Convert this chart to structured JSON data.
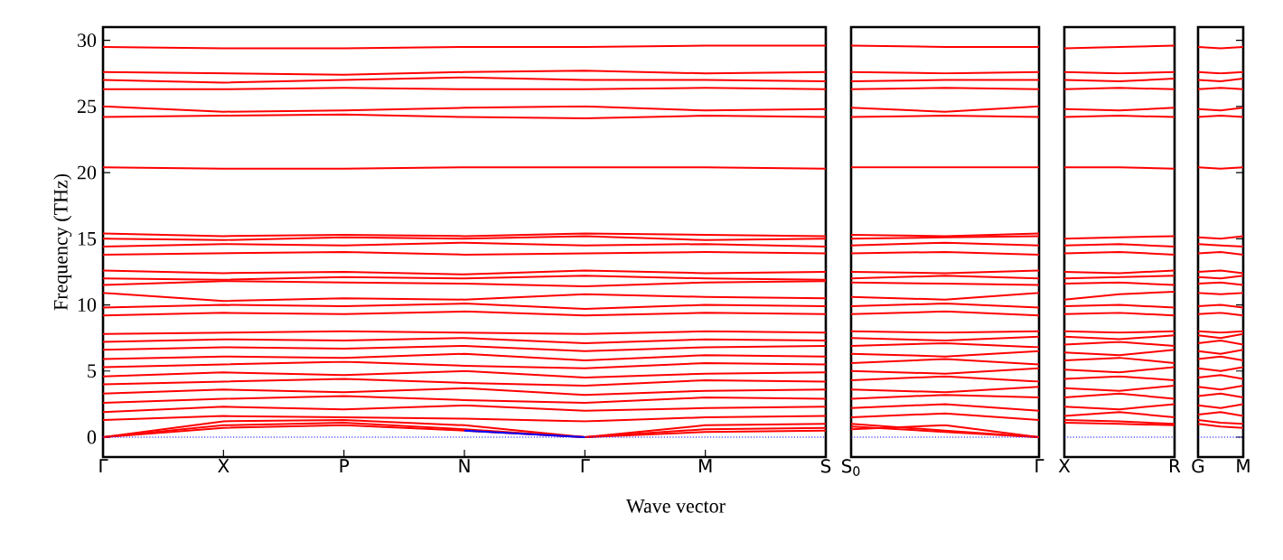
{
  "chart_data": [
    {
      "type": "line",
      "ylabel": "Frequency (THz)",
      "xlabel": "Wave vector",
      "color": "#ff0000",
      "categories": [
        "Γ",
        "X",
        "P",
        "N",
        "Γ",
        "M",
        "S"
      ],
      "ylim": [
        -1.5,
        31
      ],
      "yticks": [
        0,
        5,
        10,
        15,
        20,
        25,
        30
      ],
      "ref_lines": [
        {
          "axis": "y",
          "value": 0,
          "color": "#0000ff",
          "line_style": "dotted"
        }
      ],
      "series": [
        {
          "values": [
            0,
            1.2,
            1.3,
            0.9,
            0,
            0.9,
            1.0
          ]
        },
        {
          "values": [
            0,
            0.9,
            1.1,
            0.6,
            0,
            0.6,
            0.7
          ]
        },
        {
          "values": [
            0,
            0.7,
            0.9,
            0.5,
            0,
            0.4,
            0.5
          ]
        },
        {
          "values": [
            1.3,
            1.6,
            1.5,
            1.4,
            1.2,
            1.5,
            1.6
          ]
        },
        {
          "values": [
            1.9,
            2.3,
            2.1,
            2.4,
            2.0,
            2.2,
            2.3
          ]
        },
        {
          "values": [
            2.6,
            2.9,
            3.1,
            2.8,
            2.6,
            3.0,
            2.9
          ]
        },
        {
          "values": [
            3.3,
            3.6,
            3.4,
            3.7,
            3.2,
            3.5,
            3.6
          ]
        },
        {
          "values": [
            4.0,
            4.2,
            4.4,
            4.1,
            3.9,
            4.3,
            4.2
          ]
        },
        {
          "values": [
            4.6,
            4.9,
            4.7,
            5.0,
            4.5,
            4.8,
            4.9
          ]
        },
        {
          "values": [
            5.3,
            5.5,
            5.7,
            5.4,
            5.2,
            5.6,
            5.5
          ]
        },
        {
          "values": [
            5.9,
            6.1,
            6.0,
            6.3,
            5.8,
            6.2,
            6.1
          ]
        },
        {
          "values": [
            6.6,
            6.8,
            6.7,
            6.9,
            6.5,
            6.8,
            6.9
          ]
        },
        {
          "values": [
            7.2,
            7.4,
            7.3,
            7.5,
            7.1,
            7.4,
            7.3
          ]
        },
        {
          "values": [
            7.8,
            7.9,
            8.0,
            7.9,
            7.8,
            8.0,
            7.9
          ]
        },
        {
          "values": [
            9.2,
            9.4,
            9.3,
            9.5,
            9.2,
            9.4,
            9.3
          ]
        },
        {
          "values": [
            9.8,
            10.0,
            9.9,
            10.1,
            9.7,
            10.0,
            9.9
          ]
        },
        {
          "values": [
            10.9,
            10.3,
            10.5,
            10.4,
            10.8,
            10.6,
            10.5
          ]
        },
        {
          "values": [
            11.5,
            11.8,
            11.7,
            11.6,
            11.4,
            11.7,
            11.8
          ]
        },
        {
          "values": [
            12.0,
            11.9,
            12.1,
            12.0,
            12.2,
            12.0,
            11.9
          ]
        },
        {
          "values": [
            12.6,
            12.4,
            12.5,
            12.3,
            12.6,
            12.4,
            12.5
          ]
        },
        {
          "values": [
            13.8,
            13.9,
            14.0,
            13.8,
            13.9,
            14.0,
            13.9
          ]
        },
        {
          "values": [
            14.4,
            14.6,
            14.5,
            14.7,
            14.5,
            14.6,
            14.4
          ]
        },
        {
          "values": [
            15.0,
            14.9,
            15.1,
            15.0,
            15.2,
            14.9,
            15.0
          ]
        },
        {
          "values": [
            15.4,
            15.2,
            15.3,
            15.2,
            15.4,
            15.3,
            15.2
          ]
        },
        {
          "values": [
            20.4,
            20.3,
            20.3,
            20.4,
            20.4,
            20.4,
            20.3
          ]
        },
        {
          "values": [
            24.2,
            24.3,
            24.4,
            24.2,
            24.1,
            24.3,
            24.2
          ]
        },
        {
          "values": [
            25.0,
            24.6,
            24.7,
            24.9,
            25.0,
            24.7,
            24.8
          ]
        },
        {
          "values": [
            26.3,
            26.3,
            26.4,
            26.3,
            26.3,
            26.4,
            26.3
          ]
        },
        {
          "values": [
            27.0,
            26.8,
            27.0,
            27.2,
            27.0,
            27.0,
            26.9
          ]
        },
        {
          "values": [
            27.6,
            27.5,
            27.4,
            27.6,
            27.7,
            27.5,
            27.6
          ]
        },
        {
          "values": [
            29.5,
            29.4,
            29.4,
            29.5,
            29.5,
            29.6,
            29.6
          ]
        },
        {
          "color": "#0000ff",
          "values": [
            null,
            null,
            null,
            0.5,
            0,
            null,
            null
          ]
        }
      ]
    },
    {
      "type": "line",
      "color": "#ff0000",
      "categories": [
        "S$_{0}$",
        null,
        "Γ"
      ],
      "ylim": [
        -1.5,
        31
      ],
      "tick_labels": "x",
      "ref_lines": [
        {
          "axis": "y",
          "value": 0,
          "color": "#0000ff",
          "line_style": "dotted"
        }
      ],
      "series": [
        {
          "values": [
            1.0,
            0.5,
            0
          ]
        },
        {
          "values": [
            0.8,
            0.4,
            0
          ]
        },
        {
          "values": [
            0.6,
            0.9,
            0
          ]
        },
        {
          "values": [
            1.5,
            1.8,
            1.3
          ]
        },
        {
          "values": [
            2.2,
            2.5,
            2.0
          ]
        },
        {
          "values": [
            2.9,
            3.2,
            3.0
          ]
        },
        {
          "values": [
            3.6,
            3.4,
            3.8
          ]
        },
        {
          "values": [
            4.3,
            4.6,
            4.2
          ]
        },
        {
          "values": [
            5.0,
            4.8,
            5.2
          ]
        },
        {
          "values": [
            5.6,
            5.9,
            5.5
          ]
        },
        {
          "values": [
            6.3,
            6.1,
            6.5
          ]
        },
        {
          "values": [
            6.9,
            7.1,
            6.8
          ]
        },
        {
          "values": [
            7.5,
            7.3,
            7.6
          ]
        },
        {
          "values": [
            8.0,
            7.9,
            8.0
          ]
        },
        {
          "values": [
            9.3,
            9.5,
            9.2
          ]
        },
        {
          "values": [
            9.9,
            10.1,
            9.8
          ]
        },
        {
          "values": [
            10.6,
            10.4,
            10.9
          ]
        },
        {
          "values": [
            11.7,
            11.6,
            11.5
          ]
        },
        {
          "values": [
            12.0,
            12.2,
            12.0
          ]
        },
        {
          "values": [
            12.5,
            12.4,
            12.6
          ]
        },
        {
          "values": [
            13.9,
            14.0,
            13.8
          ]
        },
        {
          "values": [
            14.5,
            14.7,
            14.5
          ]
        },
        {
          "values": [
            15.0,
            15.1,
            15.2
          ]
        },
        {
          "values": [
            15.3,
            15.2,
            15.4
          ]
        },
        {
          "values": [
            20.4,
            20.4,
            20.4
          ]
        },
        {
          "values": [
            24.2,
            24.3,
            24.2
          ]
        },
        {
          "values": [
            24.9,
            24.6,
            25.0
          ]
        },
        {
          "values": [
            26.3,
            26.4,
            26.3
          ]
        },
        {
          "values": [
            26.9,
            27.0,
            27.0
          ]
        },
        {
          "values": [
            27.6,
            27.5,
            27.6
          ]
        },
        {
          "values": [
            29.6,
            29.5,
            29.5
          ]
        }
      ]
    },
    {
      "type": "line",
      "color": "#ff0000",
      "categories": [
        "X",
        null,
        "R"
      ],
      "ylim": [
        -1.5,
        31
      ],
      "tick_labels": "x",
      "ref_lines": [
        {
          "axis": "y",
          "value": 0,
          "color": "#0000ff",
          "line_style": "dotted"
        }
      ],
      "series": [
        {
          "values": [
            1.1,
            1.0,
            0.9
          ]
        },
        {
          "values": [
            1.3,
            1.2,
            1.0
          ]
        },
        {
          "values": [
            1.6,
            1.9,
            1.5
          ]
        },
        {
          "values": [
            2.3,
            2.1,
            2.5
          ]
        },
        {
          "values": [
            3.0,
            3.3,
            2.9
          ]
        },
        {
          "values": [
            3.7,
            3.5,
            3.9
          ]
        },
        {
          "values": [
            4.4,
            4.6,
            4.3
          ]
        },
        {
          "values": [
            5.1,
            4.9,
            5.3
          ]
        },
        {
          "values": [
            5.8,
            6.0,
            5.6
          ]
        },
        {
          "values": [
            6.4,
            6.2,
            6.6
          ]
        },
        {
          "values": [
            7.0,
            7.2,
            6.9
          ]
        },
        {
          "values": [
            7.6,
            7.4,
            7.7
          ]
        },
        {
          "values": [
            8.0,
            7.9,
            8.0
          ]
        },
        {
          "values": [
            9.3,
            9.4,
            9.2
          ]
        },
        {
          "values": [
            9.9,
            10.0,
            9.8
          ]
        },
        {
          "values": [
            10.4,
            10.8,
            11.0
          ]
        },
        {
          "values": [
            11.6,
            11.7,
            11.5
          ]
        },
        {
          "values": [
            12.0,
            12.1,
            12.2
          ]
        },
        {
          "values": [
            12.5,
            12.4,
            12.6
          ]
        },
        {
          "values": [
            13.9,
            14.0,
            13.8
          ]
        },
        {
          "values": [
            14.5,
            14.6,
            14.4
          ]
        },
        {
          "values": [
            15.0,
            15.1,
            15.2
          ]
        },
        {
          "values": [
            20.4,
            20.4,
            20.3
          ]
        },
        {
          "values": [
            24.2,
            24.3,
            24.2
          ]
        },
        {
          "values": [
            24.8,
            24.7,
            24.9
          ]
        },
        {
          "values": [
            26.3,
            26.4,
            26.3
          ]
        },
        {
          "values": [
            27.0,
            26.9,
            27.1
          ]
        },
        {
          "values": [
            27.6,
            27.5,
            27.6
          ]
        },
        {
          "values": [
            29.4,
            29.5,
            29.6
          ]
        }
      ]
    },
    {
      "type": "line",
      "color": "#ff0000",
      "categories": [
        "G",
        null,
        "M"
      ],
      "ylim": [
        -1.5,
        31
      ],
      "tick_labels": "x",
      "yticks": [
        0,
        5,
        10,
        15,
        20,
        25,
        30
      ],
      "ref_lines": [
        {
          "axis": "y",
          "value": 0,
          "color": "#0000ff",
          "line_style": "dotted"
        }
      ],
      "series": [
        {
          "values": [
            1.0,
            0.8,
            0.7
          ]
        },
        {
          "values": [
            1.3,
            1.1,
            1.0
          ]
        },
        {
          "values": [
            1.7,
            1.9,
            1.6
          ]
        },
        {
          "values": [
            2.4,
            2.2,
            2.5
          ]
        },
        {
          "values": [
            3.1,
            3.3,
            3.0
          ]
        },
        {
          "values": [
            3.8,
            3.6,
            3.9
          ]
        },
        {
          "values": [
            4.5,
            4.7,
            4.4
          ]
        },
        {
          "values": [
            5.2,
            5.0,
            5.3
          ]
        },
        {
          "values": [
            5.9,
            6.1,
            5.8
          ]
        },
        {
          "values": [
            6.5,
            6.3,
            6.6
          ]
        },
        {
          "values": [
            7.1,
            7.3,
            7.0
          ]
        },
        {
          "values": [
            7.7,
            7.5,
            7.8
          ]
        },
        {
          "values": [
            8.0,
            7.9,
            8.0
          ]
        },
        {
          "values": [
            9.3,
            9.4,
            9.2
          ]
        },
        {
          "values": [
            9.9,
            10.0,
            9.8
          ]
        },
        {
          "values": [
            10.9,
            10.8,
            10.9
          ]
        },
        {
          "values": [
            11.6,
            11.7,
            11.5
          ]
        },
        {
          "values": [
            12.1,
            12.0,
            12.2
          ]
        },
        {
          "values": [
            12.5,
            12.6,
            12.4
          ]
        },
        {
          "values": [
            13.9,
            14.0,
            13.8
          ]
        },
        {
          "values": [
            14.6,
            14.5,
            14.4
          ]
        },
        {
          "values": [
            15.1,
            15.0,
            15.2
          ]
        },
        {
          "values": [
            20.4,
            20.3,
            20.4
          ]
        },
        {
          "values": [
            24.2,
            24.3,
            24.2
          ]
        },
        {
          "values": [
            24.8,
            24.7,
            24.9
          ]
        },
        {
          "values": [
            26.3,
            26.4,
            26.3
          ]
        },
        {
          "values": [
            27.0,
            26.9,
            27.1
          ]
        },
        {
          "values": [
            27.6,
            27.5,
            27.6
          ]
        },
        {
          "values": [
            29.5,
            29.4,
            29.5
          ]
        }
      ]
    }
  ]
}
